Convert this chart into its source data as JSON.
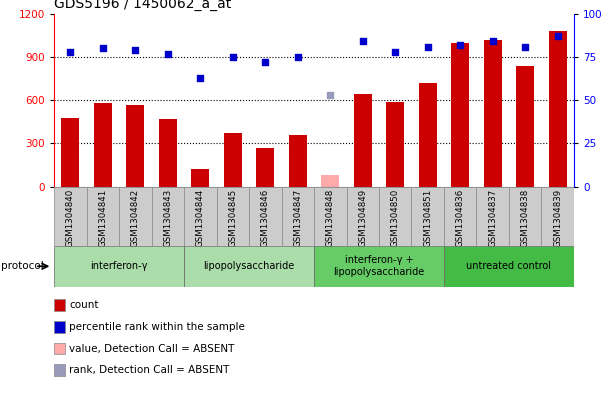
{
  "title": "GDS5196 / 1450062_a_at",
  "samples": [
    "GSM1304840",
    "GSM1304841",
    "GSM1304842",
    "GSM1304843",
    "GSM1304844",
    "GSM1304845",
    "GSM1304846",
    "GSM1304847",
    "GSM1304848",
    "GSM1304849",
    "GSM1304850",
    "GSM1304851",
    "GSM1304836",
    "GSM1304837",
    "GSM1304838",
    "GSM1304839"
  ],
  "bar_values": [
    480,
    580,
    570,
    470,
    120,
    370,
    270,
    360,
    80,
    640,
    590,
    720,
    1000,
    1020,
    840,
    1080
  ],
  "bar_absent": [
    false,
    false,
    false,
    false,
    false,
    false,
    false,
    false,
    true,
    false,
    false,
    false,
    false,
    false,
    false,
    false
  ],
  "dot_values": [
    78,
    80,
    79,
    77,
    63,
    75,
    72,
    75,
    53,
    84,
    78,
    81,
    82,
    84,
    81,
    87
  ],
  "dot_absent": [
    false,
    false,
    false,
    false,
    false,
    false,
    false,
    false,
    true,
    false,
    false,
    false,
    false,
    false,
    false,
    false
  ],
  "bar_color": "#cc0000",
  "bar_absent_color": "#ffaaaa",
  "dot_color": "#0000cc",
  "dot_absent_color": "#9999bb",
  "ylim_left": [
    0,
    1200
  ],
  "ylim_right": [
    0,
    100
  ],
  "yticks_left": [
    0,
    300,
    600,
    900,
    1200
  ],
  "yticks_right": [
    0,
    25,
    50,
    75,
    100
  ],
  "groups": [
    {
      "label": "interferon-γ",
      "start": 0,
      "end": 4,
      "color": "#aaddaa"
    },
    {
      "label": "lipopolysaccharide",
      "start": 4,
      "end": 8,
      "color": "#aaddaa"
    },
    {
      "label": "interferon-γ +\nlipopolysaccharide",
      "start": 8,
      "end": 12,
      "color": "#66cc66"
    },
    {
      "label": "untreated control",
      "start": 12,
      "end": 16,
      "color": "#44bb44"
    }
  ],
  "protocol_label": "protocol",
  "legend_items": [
    {
      "label": "count",
      "color": "#cc0000",
      "marker": "s"
    },
    {
      "label": "percentile rank within the sample",
      "color": "#0000cc",
      "marker": "s"
    },
    {
      "label": "value, Detection Call = ABSENT",
      "color": "#ffaaaa",
      "marker": "s"
    },
    {
      "label": "rank, Detection Call = ABSENT",
      "color": "#9999bb",
      "marker": "s"
    }
  ],
  "background_color": "#ffffff",
  "title_fontsize": 10,
  "tick_fontsize": 7.5,
  "bar_width": 0.55,
  "sample_bg_color": "#cccccc",
  "grid_dotted_vals": [
    300,
    600,
    900
  ]
}
